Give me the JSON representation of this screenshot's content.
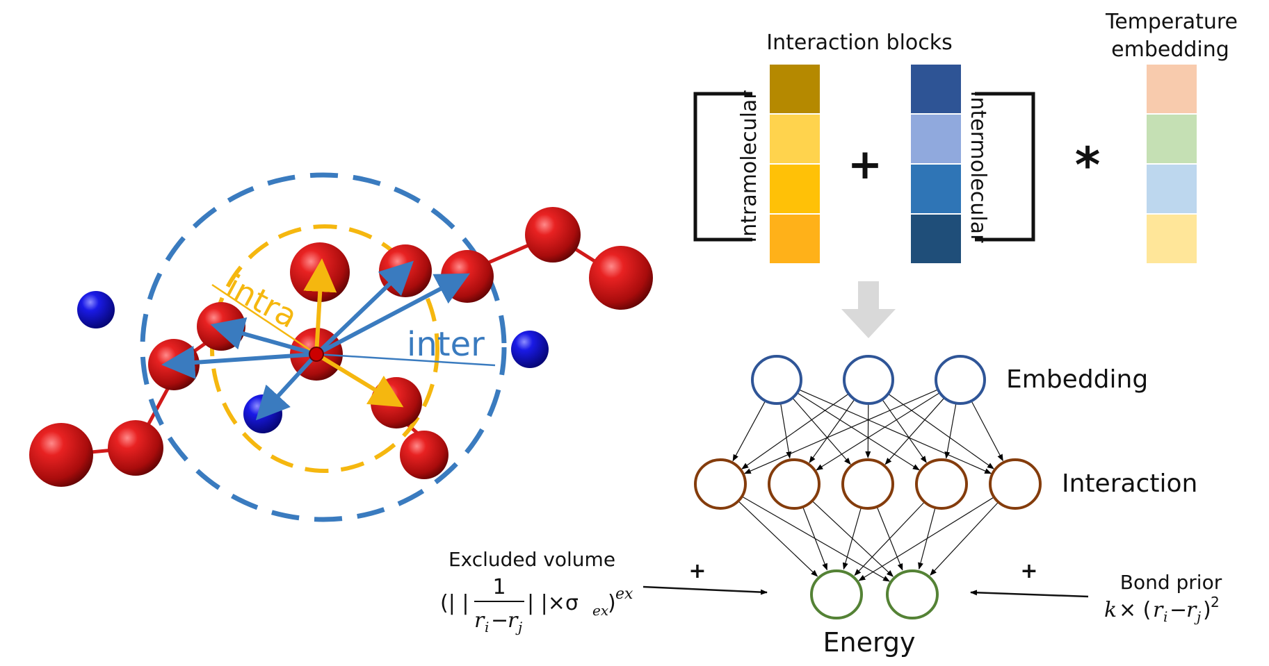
{
  "molecule": {
    "intra_label": "intra",
    "inter_label": "inter",
    "colors": {
      "intra": "#f5b70f",
      "inter": "#3a7bbf",
      "bead": "#d11a1a",
      "ion": "#1010c0"
    }
  },
  "blocks": {
    "title": "Interaction blocks",
    "intra_label": "Intramolecular",
    "inter_label": "Intermolecular",
    "plus": "+",
    "times": "*",
    "temp_title_line1": "Temperature",
    "temp_title_line2": "embedding",
    "intra_colors": [
      "#b58900",
      "#ffd34d",
      "#ffc107",
      "#ffb119"
    ],
    "inter_colors": [
      "#2e5495",
      "#90a9dd",
      "#2f75b6",
      "#1f4e79"
    ],
    "temp_colors": [
      "#f8cbad",
      "#c5e0b4",
      "#bdd7ee",
      "#ffe699"
    ]
  },
  "network": {
    "embedding_label": "Embedding",
    "interaction_label": "Interaction",
    "energy_label": "Energy",
    "embedding_color": "#2f5597",
    "interaction_color": "#843c0c",
    "energy_color": "#548235"
  },
  "priors": {
    "excluded_title": "Excluded volume",
    "excluded_plus": "+",
    "bond_title": "Bond prior",
    "bond_plus": "+",
    "bond_formula_k": "k",
    "excluded_exponent": "ex"
  }
}
